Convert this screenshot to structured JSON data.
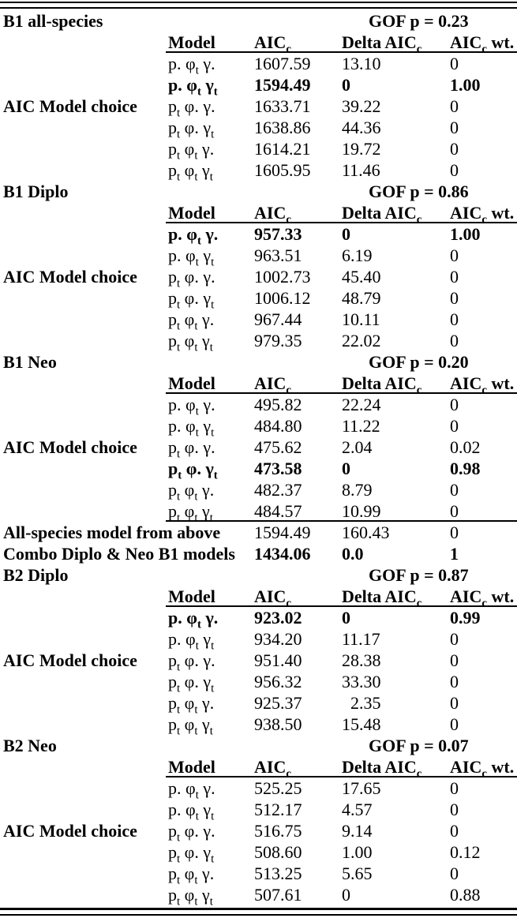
{
  "text_color": "#000000",
  "background_color": "#ffffff",
  "columns": {
    "model": "Model",
    "aicc": "AIC~c~",
    "delta": "Delta AIC~c~",
    "wt": "AIC~c~ wt."
  },
  "blocks": [
    {
      "type": "section",
      "title": "B1 all-species",
      "gof": "GOF p = 0.23",
      "rows": [
        {
          "model": "p. φ~t~ γ.",
          "aicc": "1607.59",
          "delta": "13.10",
          "wt": "0",
          "bold": false
        },
        {
          "model": "p. φ~t~ γ~t~",
          "aicc": "1594.49",
          "delta": "0",
          "wt": "1.00",
          "bold": true
        },
        {
          "model": "p~t~ φ. γ.",
          "aicc": "1633.71",
          "delta": "39.22",
          "wt": "0",
          "bold": false,
          "gutter": "AIC Model choice"
        },
        {
          "model": "p~t~ φ. γ~t~",
          "aicc": "1638.86",
          "delta": "44.36",
          "wt": "0",
          "bold": false
        },
        {
          "model": "p~t~ φ~t~ γ.",
          "aicc": "1614.21",
          "delta": "19.72",
          "wt": "0",
          "bold": false
        },
        {
          "model": "p~t~ φ~t~ γ~t~",
          "aicc": "1605.95",
          "delta": "11.46",
          "wt": "0",
          "bold": false
        }
      ]
    },
    {
      "type": "section",
      "title": "B1 Diplo",
      "gof": "GOF p = 0.86",
      "rows": [
        {
          "model": "p. φ~t~ γ.",
          "aicc": "957.33",
          "delta": "0",
          "wt": "1.00",
          "bold": true
        },
        {
          "model": "p. φ~t~ γ~t~",
          "aicc": "963.51",
          "delta": "6.19",
          "wt": "0",
          "bold": false
        },
        {
          "model": "p~t~ φ. γ.",
          "aicc": "1002.73",
          "delta": "45.40",
          "wt": "0",
          "bold": false,
          "gutter": "AIC Model choice"
        },
        {
          "model": "p~t~ φ. γ~t~",
          "aicc": "1006.12",
          "delta": "48.79",
          "wt": "0",
          "bold": false
        },
        {
          "model": "p~t~ φ~t~ γ.",
          "aicc": "967.44",
          "delta": "10.11",
          "wt": "0",
          "bold": false
        },
        {
          "model": "p~t~ φ~t~ γ~t~",
          "aicc": "979.35",
          "delta": "22.02",
          "wt": "0",
          "bold": false
        }
      ]
    },
    {
      "type": "section",
      "title": "B1 Neo",
      "gof": "GOF p = 0.20",
      "rule_after": true,
      "rows": [
        {
          "model": "p. φ~t~ γ.",
          "aicc": "495.82",
          "delta": "22.24",
          "wt": "0",
          "bold": false
        },
        {
          "model": "p. φ~t~ γ~t~",
          "aicc": "484.80",
          "delta": "11.22",
          "wt": "0",
          "bold": false
        },
        {
          "model": "p~t~ φ. γ.",
          "aicc": "475.62",
          "delta": "2.04",
          "wt": "0.02",
          "bold": false,
          "gutter": "AIC Model choice"
        },
        {
          "model": "p~t~ φ. γ~t~",
          "aicc": "473.58",
          "delta": "0",
          "wt": "0.98",
          "bold": true
        },
        {
          "model": "p~t~ φ~t~ γ.",
          "aicc": "482.37",
          "delta": "8.79",
          "wt": "0",
          "bold": false
        },
        {
          "model": "p~t~ φ~t~ γ~t~",
          "aicc": "484.57",
          "delta": "10.99",
          "wt": "0",
          "bold": false
        }
      ]
    },
    {
      "type": "summary",
      "label": "All-species model from above",
      "aicc": "1594.49",
      "delta": "160.43",
      "wt": "0",
      "bold_values": false
    },
    {
      "type": "summary",
      "label": "Combo Diplo & Neo B1 models",
      "aicc": "1434.06",
      "delta": "0.0",
      "wt": "1",
      "bold_values": true
    },
    {
      "type": "section",
      "title": "B2 Diplo",
      "gof": "GOF p = 0.87",
      "rows": [
        {
          "model": "p. φ~t~ γ.",
          "aicc": "923.02",
          "delta": "0",
          "wt": "0.99",
          "bold": true
        },
        {
          "model": "p. φ~t~ γ~t~",
          "aicc": "934.20",
          "delta": "11.17",
          "wt": "0",
          "bold": false
        },
        {
          "model": "p~t~ φ. γ.",
          "aicc": "951.40",
          "delta": "28.38",
          "wt": "0",
          "bold": false,
          "gutter": "AIC Model choice"
        },
        {
          "model": "p~t~ φ. γ~t~",
          "aicc": "956.32",
          "delta": "33.30",
          "wt": "0",
          "bold": false
        },
        {
          "model": "p~t~ φ~t~ γ.",
          "aicc": "925.37",
          "delta": "  2.35",
          "wt": "0",
          "bold": false
        },
        {
          "model": "p~t~ φ~t~ γ~t~",
          "aicc": "938.50",
          "delta": "15.48",
          "wt": "0",
          "bold": false
        }
      ]
    },
    {
      "type": "section",
      "title": "B2 Neo",
      "gof": "GOF p = 0.07",
      "rows": [
        {
          "model": "p. φ~t~ γ.",
          "aicc": "525.25",
          "delta": "17.65",
          "wt": "0",
          "bold": false
        },
        {
          "model": "p. φ~t~ γ~t~",
          "aicc": "512.17",
          "delta": "4.57",
          "wt": "0",
          "bold": false
        },
        {
          "model": "p~t~ φ. γ.",
          "aicc": "516.75",
          "delta": "9.14",
          "wt": "0",
          "bold": false,
          "gutter": "AIC Model choice"
        },
        {
          "model": "p~t~ φ. γ~t~",
          "aicc": "508.60",
          "delta": "1.00",
          "wt": "0.12",
          "bold": false
        },
        {
          "model": "p~t~ φ~t~ γ.",
          "aicc": "513.25",
          "delta": "5.65",
          "wt": "0",
          "bold": false
        },
        {
          "model": "p~t~ φ~t~ γ~t~",
          "aicc": "507.61",
          "delta": "0",
          "wt": "0.88",
          "bold": false
        }
      ]
    }
  ]
}
